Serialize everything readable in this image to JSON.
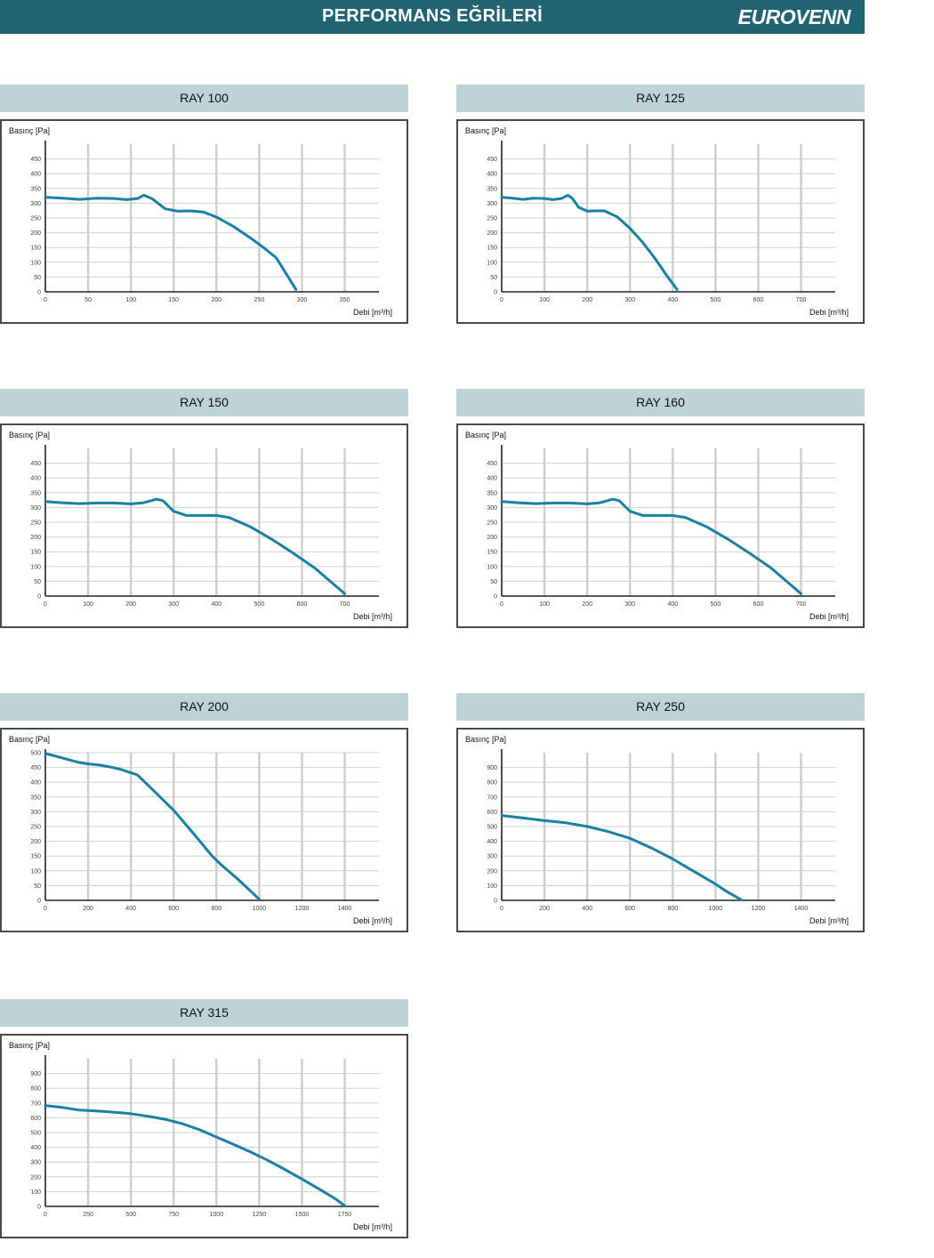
{
  "header": {
    "title": "PERFORMANS EĞRİLERİ",
    "logo": "EUROVENN"
  },
  "colors": {
    "header_bg": "#1f6470",
    "panel_title_bg": "#bed3d8",
    "curve": "#1b7fa6",
    "grid": "#c8c8c8"
  },
  "chart_data": [
    {
      "type": "line",
      "title": "RAY 100",
      "ylabel": "Basınç [Pa]",
      "xlabel": "Debi [m³/h]",
      "xlim": [
        0,
        390
      ],
      "ylim": [
        0,
        500
      ],
      "xticks": [
        0,
        50,
        100,
        150,
        200,
        250,
        300,
        350
      ],
      "yticks": [
        0,
        50,
        100,
        150,
        200,
        250,
        300,
        350,
        400,
        450
      ],
      "series": [
        {
          "x": [
            0,
            20,
            40,
            60,
            80,
            95,
            108,
            115,
            125,
            140,
            155,
            170,
            185,
            200,
            220,
            240,
            255,
            270,
            293
          ],
          "y": [
            320,
            317,
            313,
            317,
            316,
            312,
            316,
            327,
            315,
            281,
            273,
            274,
            270,
            253,
            221,
            182,
            150,
            115,
            8
          ]
        }
      ]
    },
    {
      "type": "line",
      "title": "RAY 125",
      "ylabel": "Basınç [Pa]",
      "xlabel": "Debi [m³/h]",
      "xlim": [
        0,
        780
      ],
      "ylim": [
        0,
        500
      ],
      "xticks": [
        0,
        100,
        200,
        300,
        400,
        500,
        600,
        700
      ],
      "yticks": [
        0,
        50,
        100,
        150,
        200,
        250,
        300,
        350,
        400,
        450
      ],
      "series": [
        {
          "x": [
            0,
            25,
            50,
            75,
            100,
            120,
            140,
            155,
            165,
            180,
            200,
            220,
            240,
            270,
            300,
            330,
            360,
            385,
            410
          ],
          "y": [
            320,
            317,
            313,
            317,
            316,
            312,
            316,
            327,
            317,
            286,
            273,
            274,
            274,
            254,
            215,
            167,
            110,
            57,
            8
          ]
        }
      ]
    },
    {
      "type": "line",
      "title": "RAY 150",
      "ylabel": "Basınç [Pa]",
      "xlabel": "Debi [m³/h]",
      "xlim": [
        0,
        780
      ],
      "ylim": [
        0,
        500
      ],
      "xticks": [
        0,
        100,
        200,
        300,
        400,
        500,
        600,
        700
      ],
      "yticks": [
        0,
        50,
        100,
        150,
        200,
        250,
        300,
        350,
        400,
        450
      ],
      "series": [
        {
          "x": [
            0,
            40,
            80,
            120,
            160,
            200,
            230,
            260,
            275,
            300,
            330,
            370,
            400,
            430,
            480,
            530,
            580,
            630,
            700
          ],
          "y": [
            320,
            316,
            313,
            315,
            315,
            312,
            316,
            328,
            323,
            287,
            273,
            273,
            273,
            266,
            234,
            192,
            145,
            95,
            8
          ]
        }
      ]
    },
    {
      "type": "line",
      "title": "RAY 160",
      "ylabel": "Basınç [Pa]",
      "xlabel": "Debi [m³/h]",
      "xlim": [
        0,
        780
      ],
      "ylim": [
        0,
        500
      ],
      "xticks": [
        0,
        100,
        200,
        300,
        400,
        500,
        600,
        700
      ],
      "yticks": [
        0,
        50,
        100,
        150,
        200,
        250,
        300,
        350,
        400,
        450
      ],
      "series": [
        {
          "x": [
            0,
            40,
            80,
            120,
            160,
            200,
            230,
            260,
            275,
            300,
            330,
            370,
            400,
            430,
            480,
            530,
            580,
            630,
            700
          ],
          "y": [
            320,
            316,
            313,
            315,
            315,
            312,
            316,
            328,
            323,
            287,
            273,
            273,
            273,
            266,
            234,
            192,
            145,
            95,
            8
          ]
        }
      ]
    },
    {
      "type": "line",
      "title": "RAY 200",
      "ylabel": "Basınç [Pa]",
      "xlabel": "Debi [m³/h]",
      "xlim": [
        0,
        1560
      ],
      "ylim": [
        0,
        500
      ],
      "xticks": [
        0,
        200,
        400,
        600,
        800,
        1000,
        1200,
        1400
      ],
      "yticks": [
        0,
        50,
        100,
        150,
        200,
        250,
        300,
        350,
        400,
        450,
        500
      ],
      "series": [
        {
          "x": [
            0,
            50,
            100,
            150,
            200,
            250,
            300,
            350,
            400,
            430,
            500,
            600,
            700,
            780,
            820,
            900,
            950,
            1000
          ],
          "y": [
            497,
            488,
            478,
            468,
            462,
            458,
            452,
            444,
            432,
            425,
            376,
            305,
            220,
            150,
            122,
            72,
            38,
            4
          ]
        }
      ]
    },
    {
      "type": "line",
      "title": "RAY 250",
      "ylabel": "Basınç [Pa]",
      "xlabel": "Debi [m³/h]",
      "xlim": [
        0,
        1560
      ],
      "ylim": [
        0,
        1000
      ],
      "xticks": [
        0,
        200,
        400,
        600,
        800,
        1000,
        1200,
        1400
      ],
      "yticks": [
        0,
        100,
        200,
        300,
        400,
        500,
        600,
        700,
        800,
        900
      ],
      "series": [
        {
          "x": [
            0,
            100,
            200,
            300,
            400,
            500,
            600,
            700,
            800,
            900,
            1000,
            1050,
            1120
          ],
          "y": [
            575,
            558,
            540,
            525,
            500,
            465,
            420,
            355,
            280,
            195,
            110,
            62,
            4
          ]
        }
      ]
    },
    {
      "type": "line",
      "title": "RAY 315",
      "ylabel": "Basınç [Pa]",
      "xlabel": "Debi [m³/h]",
      "xlim": [
        0,
        1950
      ],
      "ylim": [
        0,
        1000
      ],
      "xticks": [
        0,
        250,
        500,
        750,
        1000,
        1250,
        1500,
        1750
      ],
      "yticks": [
        0,
        100,
        200,
        300,
        400,
        500,
        600,
        700,
        800,
        900
      ],
      "series": [
        {
          "x": [
            0,
            100,
            200,
            300,
            400,
            500,
            600,
            700,
            800,
            900,
            1000,
            1100,
            1200,
            1300,
            1400,
            1500,
            1600,
            1700,
            1750
          ],
          "y": [
            683,
            670,
            652,
            646,
            638,
            628,
            610,
            590,
            560,
            520,
            470,
            420,
            368,
            312,
            250,
            185,
            118,
            48,
            4
          ]
        }
      ]
    }
  ]
}
